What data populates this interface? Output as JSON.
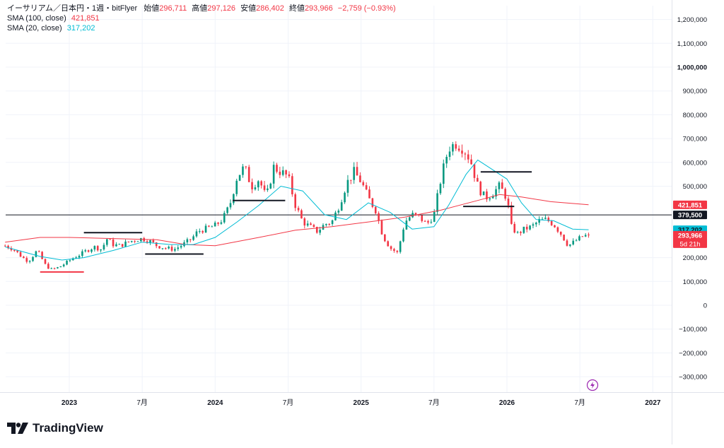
{
  "chart_data": {
    "type": "candlestick",
    "title": "イーサリアム／日本円・1週・bitFlyer",
    "ohlc_header": [
      {
        "label": "始値",
        "value": "296,711"
      },
      {
        "label": "高値",
        "value": "297,126"
      },
      {
        "label": "安値",
        "value": "286,402"
      },
      {
        "label": "終値",
        "value": "293,966"
      },
      {
        "label": "",
        "value": "−2,759 (−0.93%)"
      }
    ],
    "indicators": [
      {
        "name": "SMA (100, close)",
        "value": "421,851",
        "color": "#f23645"
      },
      {
        "name": "SMA (20, close)",
        "value": "317,202",
        "color": "#00bcd4"
      }
    ],
    "price_axis_ticks": [
      {
        "label": "1,200,000",
        "value": 1200000
      },
      {
        "label": "1,100,000",
        "value": 1100000
      },
      {
        "label": "1,000,000",
        "value": 1000000,
        "bold": true
      },
      {
        "label": "900,000",
        "value": 900000
      },
      {
        "label": "800,000",
        "value": 800000
      },
      {
        "label": "700,000",
        "value": 700000
      },
      {
        "label": "600,000",
        "value": 600000
      },
      {
        "label": "500,000",
        "value": 500000
      },
      {
        "label": "200,000",
        "value": 200000
      },
      {
        "label": "100,000",
        "value": 100000
      },
      {
        "label": "0",
        "value": 0
      },
      {
        "label": "−100,000",
        "value": -100000
      },
      {
        "label": "−200,000",
        "value": -200000
      },
      {
        "label": "−300,000",
        "value": -300000
      }
    ],
    "price_tags": [
      {
        "label": "421,851",
        "value": 421851,
        "bg": "#f23645",
        "color": "#ffffff"
      },
      {
        "label": "379,500",
        "value": 379500,
        "bg": "#131722",
        "color": "#ffffff"
      },
      {
        "label": "317,202",
        "value": 317202,
        "bg": "#00bcd4",
        "color": "#131722"
      },
      {
        "label": "293,966",
        "sub": "5d 21h",
        "value": 293966,
        "bg": "#f23645",
        "color": "#ffffff"
      }
    ],
    "horizontal_line": {
      "value": 379500,
      "color": "#131722"
    },
    "time_axis": [
      {
        "label": "2023",
        "t": 2023.0,
        "bold": true
      },
      {
        "label": "7月",
        "t": 2023.5
      },
      {
        "label": "2024",
        "t": 2024.0,
        "bold": true
      },
      {
        "label": "7月",
        "t": 2024.5
      },
      {
        "label": "2025",
        "t": 2025.0,
        "bold": true
      },
      {
        "label": "7月",
        "t": 2025.5
      },
      {
        "label": "2026",
        "t": 2026.0,
        "bold": true
      },
      {
        "label": "7月",
        "t": 2026.5
      },
      {
        "label": "2027",
        "t": 2027.0,
        "bold": true
      }
    ],
    "y_range": [
      -350000,
      1250000
    ],
    "x_range": [
      2022.55,
      2027.2
    ],
    "close_path": [
      [
        2022.56,
        250000
      ],
      [
        2022.62,
        235000
      ],
      [
        2022.68,
        200000
      ],
      [
        2022.72,
        185000
      ],
      [
        2022.78,
        230000
      ],
      [
        2022.84,
        165000
      ],
      [
        2022.88,
        150000
      ],
      [
        2022.93,
        160000
      ],
      [
        2022.97,
        175000
      ],
      [
        2023.03,
        200000
      ],
      [
        2023.08,
        215000
      ],
      [
        2023.12,
        230000
      ],
      [
        2023.17,
        245000
      ],
      [
        2023.22,
        235000
      ],
      [
        2023.26,
        280000
      ],
      [
        2023.3,
        255000
      ],
      [
        2023.35,
        250000
      ],
      [
        2023.4,
        265000
      ],
      [
        2023.45,
        275000
      ],
      [
        2023.5,
        280000
      ],
      [
        2023.55,
        270000
      ],
      [
        2023.6,
        250000
      ],
      [
        2023.66,
        240000
      ],
      [
        2023.72,
        235000
      ],
      [
        2023.78,
        255000
      ],
      [
        2023.84,
        280000
      ],
      [
        2023.88,
        310000
      ],
      [
        2023.93,
        320000
      ],
      [
        2024.0,
        335000
      ],
      [
        2024.05,
        360000
      ],
      [
        2024.1,
        420000
      ],
      [
        2024.15,
        540000
      ],
      [
        2024.2,
        580000
      ],
      [
        2024.25,
        500000
      ],
      [
        2024.3,
        530000
      ],
      [
        2024.35,
        450000
      ],
      [
        2024.4,
        580000
      ],
      [
        2024.45,
        560000
      ],
      [
        2024.5,
        540000
      ],
      [
        2024.55,
        420000
      ],
      [
        2024.6,
        350000
      ],
      [
        2024.65,
        330000
      ],
      [
        2024.7,
        310000
      ],
      [
        2024.75,
        340000
      ],
      [
        2024.8,
        350000
      ],
      [
        2024.85,
        420000
      ],
      [
        2024.9,
        510000
      ],
      [
        2024.95,
        560000
      ],
      [
        2025.0,
        520000
      ],
      [
        2025.05,
        450000
      ],
      [
        2025.1,
        400000
      ],
      [
        2025.15,
        290000
      ],
      [
        2025.2,
        240000
      ],
      [
        2025.25,
        220000
      ],
      [
        2025.3,
        350000
      ],
      [
        2025.35,
        380000
      ],
      [
        2025.4,
        370000
      ],
      [
        2025.45,
        340000
      ],
      [
        2025.5,
        380000
      ],
      [
        2025.55,
        540000
      ],
      [
        2025.6,
        660000
      ],
      [
        2025.65,
        680000
      ],
      [
        2025.7,
        660000
      ],
      [
        2025.75,
        610000
      ],
      [
        2025.8,
        500000
      ],
      [
        2025.85,
        450000
      ],
      [
        2025.9,
        470000
      ],
      [
        2025.95,
        500000
      ],
      [
        2026.0,
        450000
      ],
      [
        2026.03,
        330000
      ],
      [
        2026.07,
        300000
      ],
      [
        2026.12,
        320000
      ],
      [
        2026.17,
        330000
      ],
      [
        2026.22,
        355000
      ],
      [
        2026.27,
        360000
      ],
      [
        2026.32,
        340000
      ],
      [
        2026.37,
        300000
      ],
      [
        2026.42,
        250000
      ],
      [
        2026.47,
        270000
      ],
      [
        2026.52,
        290000
      ],
      [
        2026.56,
        293966
      ]
    ],
    "sma20_path": [
      [
        2022.56,
        245000
      ],
      [
        2022.8,
        205000
      ],
      [
        2022.95,
        190000
      ],
      [
        2023.1,
        200000
      ],
      [
        2023.3,
        230000
      ],
      [
        2023.5,
        265000
      ],
      [
        2023.7,
        255000
      ],
      [
        2023.85,
        255000
      ],
      [
        2024.0,
        285000
      ],
      [
        2024.15,
        350000
      ],
      [
        2024.3,
        420000
      ],
      [
        2024.45,
        500000
      ],
      [
        2024.6,
        480000
      ],
      [
        2024.75,
        380000
      ],
      [
        2024.9,
        360000
      ],
      [
        2025.05,
        430000
      ],
      [
        2025.2,
        390000
      ],
      [
        2025.35,
        320000
      ],
      [
        2025.5,
        330000
      ],
      [
        2025.6,
        420000
      ],
      [
        2025.72,
        550000
      ],
      [
        2025.8,
        610000
      ],
      [
        2025.9,
        570000
      ],
      [
        2026.0,
        530000
      ],
      [
        2026.1,
        430000
      ],
      [
        2026.2,
        360000
      ],
      [
        2026.32,
        355000
      ],
      [
        2026.45,
        320000
      ],
      [
        2026.56,
        317202
      ]
    ],
    "sma100_path": [
      [
        2022.56,
        265000
      ],
      [
        2022.8,
        285000
      ],
      [
        2023.0,
        285000
      ],
      [
        2023.3,
        280000
      ],
      [
        2023.6,
        275000
      ],
      [
        2023.8,
        255000
      ],
      [
        2024.0,
        250000
      ],
      [
        2024.3,
        285000
      ],
      [
        2024.55,
        315000
      ],
      [
        2024.8,
        330000
      ],
      [
        2025.05,
        350000
      ],
      [
        2025.3,
        370000
      ],
      [
        2025.55,
        400000
      ],
      [
        2025.8,
        440000
      ],
      [
        2025.95,
        465000
      ],
      [
        2026.1,
        455000
      ],
      [
        2026.3,
        435000
      ],
      [
        2026.56,
        421851
      ]
    ],
    "drawn_levels": [
      {
        "t1": 2022.8,
        "t2": 2023.1,
        "value": 140000,
        "color": "#f23645"
      },
      {
        "t1": 2023.1,
        "t2": 2023.5,
        "value": 305000,
        "color": "#131722"
      },
      {
        "t1": 2023.52,
        "t2": 2023.92,
        "value": 215000,
        "color": "#131722"
      },
      {
        "t1": 2024.12,
        "t2": 2024.48,
        "value": 440000,
        "color": "#131722"
      },
      {
        "t1": 2025.82,
        "t2": 2026.17,
        "value": 560000,
        "color": "#131722"
      },
      {
        "t1": 2025.7,
        "t2": 2026.05,
        "value": 415000,
        "color": "#131722"
      }
    ],
    "colors": {
      "up": "#089981",
      "down": "#f23645",
      "grid": "#f0f3fa",
      "axis_text": "#131722"
    },
    "grid": true
  },
  "brand": {
    "name": "TradingView"
  },
  "icons": {
    "alert": "lightning-icon",
    "logo": "tradingview-logo-icon"
  }
}
